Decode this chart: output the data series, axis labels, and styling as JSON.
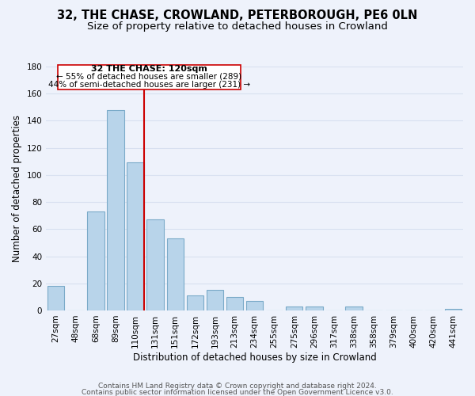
{
  "title": "32, THE CHASE, CROWLAND, PETERBOROUGH, PE6 0LN",
  "subtitle": "Size of property relative to detached houses in Crowland",
  "xlabel": "Distribution of detached houses by size in Crowland",
  "ylabel": "Number of detached properties",
  "categories": [
    "27sqm",
    "48sqm",
    "68sqm",
    "89sqm",
    "110sqm",
    "131sqm",
    "151sqm",
    "172sqm",
    "193sqm",
    "213sqm",
    "234sqm",
    "255sqm",
    "275sqm",
    "296sqm",
    "317sqm",
    "338sqm",
    "358sqm",
    "379sqm",
    "400sqm",
    "420sqm",
    "441sqm"
  ],
  "values": [
    18,
    0,
    73,
    148,
    109,
    67,
    53,
    11,
    15,
    10,
    7,
    0,
    3,
    3,
    0,
    3,
    0,
    0,
    0,
    0,
    1
  ],
  "bar_color": "#b8d4ea",
  "bar_edge_color": "#7aaac8",
  "highlight_line_color": "#cc0000",
  "annotation_box_color": "#ffffff",
  "annotation_box_edge_color": "#cc0000",
  "annotation_text_line1": "32 THE CHASE: 120sqm",
  "annotation_text_line2": "← 55% of detached houses are smaller (289)",
  "annotation_text_line3": "44% of semi-detached houses are larger (231) →",
  "ylim": [
    0,
    180
  ],
  "yticks": [
    0,
    20,
    40,
    60,
    80,
    100,
    120,
    140,
    160,
    180
  ],
  "footer_line1": "Contains HM Land Registry data © Crown copyright and database right 2024.",
  "footer_line2": "Contains public sector information licensed under the Open Government Licence v3.0.",
  "background_color": "#eef2fb",
  "grid_color": "#d8e0f0",
  "title_fontsize": 10.5,
  "subtitle_fontsize": 9.5,
  "axis_label_fontsize": 8.5,
  "tick_fontsize": 7.5,
  "annotation_fontsize": 8,
  "footer_fontsize": 6.5
}
